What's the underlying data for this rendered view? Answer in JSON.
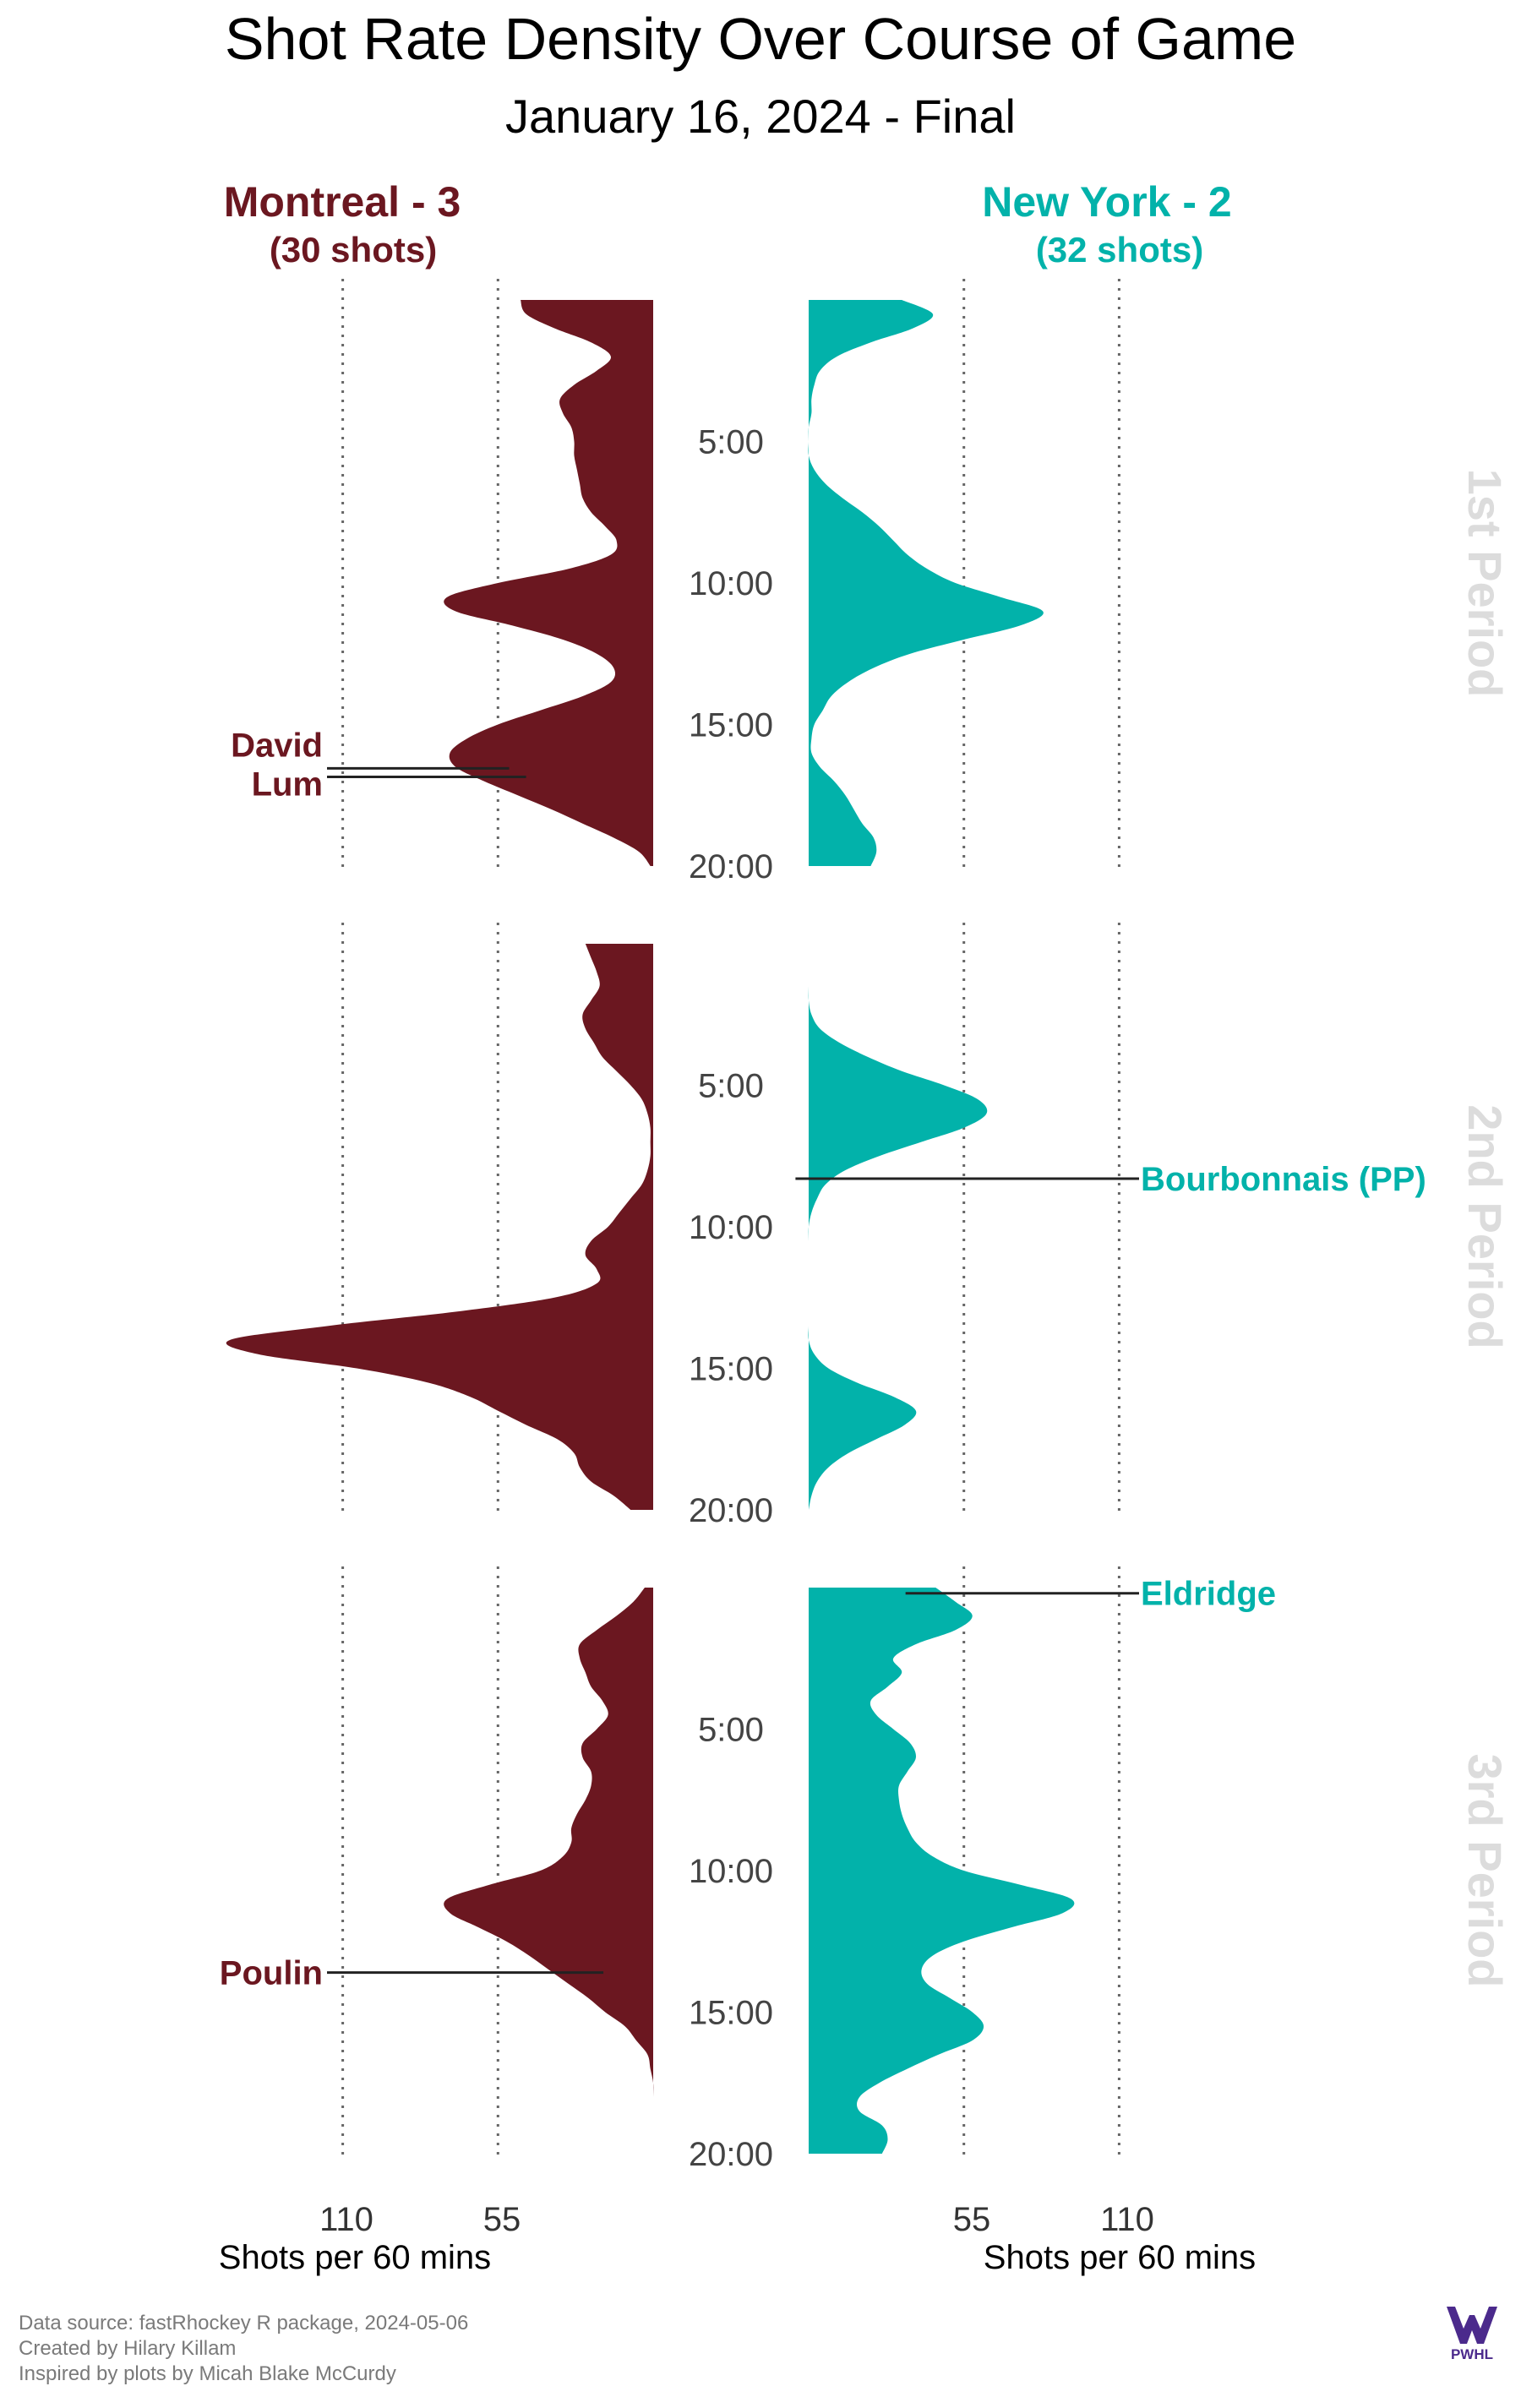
{
  "title": "Shot Rate Density Over Course of Game",
  "subtitle": "January 16, 2024 - Final",
  "teams": [
    {
      "name": "Montreal - 3",
      "shots_label": "(30 shots)",
      "color": "#6b1720"
    },
    {
      "name": "New York - 2",
      "shots_label": "(32 shots)",
      "color": "#02b2aa"
    }
  ],
  "periods": [
    "1st Period",
    "2nd Period",
    "3rd Period"
  ],
  "time_ticks": [
    "5:00",
    "10:00",
    "15:00",
    "20:00"
  ],
  "axis_title": "Shots per 60 mins",
  "footer": [
    "Data source: fastRhockey R package, 2024-05-06",
    "Created by Hilary Killam",
    "Inspired by plots by Micah Blake McCurdy"
  ],
  "logo_text": "PWHL",
  "colors": {
    "montreal": "#6b1720",
    "new_york": "#02b2aa",
    "period_label": "#dcdcdc",
    "text": "#000000",
    "footer": "#7a7a7a"
  },
  "chart_data": {
    "type": "area",
    "x_axis": "Shots per 60 mins",
    "x_ticks": [
      110,
      55
    ],
    "y_axis": "game time within period (minutes, 0-20)",
    "y_ticks": [
      "5:00",
      "10:00",
      "15:00",
      "20:00"
    ],
    "grid": "dotted vertical lines at 55 and 110",
    "series": [
      {
        "name": "Montreal - 3",
        "side": "left",
        "periods": [
          [
            [
              0,
              47
            ],
            [
              0.5,
              45
            ],
            [
              1,
              35
            ],
            [
              1.5,
              22
            ],
            [
              2,
              15
            ],
            [
              2.5,
              20
            ],
            [
              3,
              28
            ],
            [
              3.5,
              33
            ],
            [
              4,
              32
            ],
            [
              4.5,
              29
            ],
            [
              5,
              28
            ],
            [
              5.5,
              28
            ],
            [
              6,
              27
            ],
            [
              6.5,
              26
            ],
            [
              7,
              25
            ],
            [
              7.5,
              22
            ],
            [
              8,
              17
            ],
            [
              8.5,
              13
            ],
            [
              9,
              15
            ],
            [
              9.5,
              30
            ],
            [
              10,
              55
            ],
            [
              10.5,
              73
            ],
            [
              11,
              70
            ],
            [
              11.5,
              50
            ],
            [
              12,
              32
            ],
            [
              12.5,
              20
            ],
            [
              13,
              14
            ],
            [
              13.5,
              15
            ],
            [
              14,
              25
            ],
            [
              14.5,
              40
            ],
            [
              15,
              55
            ],
            [
              15.5,
              66
            ],
            [
              16,
              72
            ],
            [
              16.5,
              70
            ],
            [
              17,
              60
            ],
            [
              17.5,
              48
            ],
            [
              18,
              36
            ],
            [
              18.5,
              25
            ],
            [
              19,
              14
            ],
            [
              19.5,
              5
            ],
            [
              20,
              1
            ]
          ],
          [
            [
              0,
              24
            ],
            [
              0.5,
              22
            ],
            [
              1,
              20
            ],
            [
              1.5,
              19
            ],
            [
              2,
              22
            ],
            [
              2.5,
              25
            ],
            [
              3,
              24
            ],
            [
              3.5,
              21
            ],
            [
              4,
              18
            ],
            [
              4.5,
              13
            ],
            [
              5,
              8
            ],
            [
              5.5,
              4
            ],
            [
              6,
              2
            ],
            [
              6.5,
              1
            ],
            [
              7,
              1
            ],
            [
              7.5,
              1
            ],
            [
              8,
              2
            ],
            [
              8.5,
              4
            ],
            [
              9,
              8
            ],
            [
              9.5,
              12
            ],
            [
              10,
              16
            ],
            [
              10.5,
              22
            ],
            [
              11,
              24
            ],
            [
              11.5,
              20
            ],
            [
              12,
              20
            ],
            [
              12.5,
              35
            ],
            [
              13,
              70
            ],
            [
              13.5,
              115
            ],
            [
              14,
              150
            ],
            [
              14.5,
              140
            ],
            [
              15,
              105
            ],
            [
              15.5,
              80
            ],
            [
              16,
              65
            ],
            [
              16.5,
              55
            ],
            [
              17,
              45
            ],
            [
              17.5,
              34
            ],
            [
              18,
              28
            ],
            [
              18.5,
              26
            ],
            [
              19,
              22
            ],
            [
              19.5,
              14
            ],
            [
              20,
              8
            ]
          ],
          [
            [
              0,
              3
            ],
            [
              0.5,
              7
            ],
            [
              1,
              13
            ],
            [
              1.5,
              20
            ],
            [
              2,
              26
            ],
            [
              2.5,
              26
            ],
            [
              3,
              24
            ],
            [
              3.5,
              22
            ],
            [
              4,
              18
            ],
            [
              4.5,
              16
            ],
            [
              5,
              20
            ],
            [
              5.5,
              25
            ],
            [
              6,
              25
            ],
            [
              6.5,
              22
            ],
            [
              7,
              22
            ],
            [
              7.5,
              24
            ],
            [
              8,
              27
            ],
            [
              8.5,
              29
            ],
            [
              9,
              29
            ],
            [
              9.5,
              32
            ],
            [
              10,
              40
            ],
            [
              10.5,
              58
            ],
            [
              11,
              73
            ],
            [
              11.5,
              72
            ],
            [
              12,
              62
            ],
            [
              12.5,
              52
            ],
            [
              13,
              44
            ],
            [
              13.5,
              37
            ],
            [
              14,
              30
            ],
            [
              14.5,
              23
            ],
            [
              15,
              17
            ],
            [
              15.5,
              10
            ],
            [
              16,
              6
            ],
            [
              16.5,
              2
            ],
            [
              17,
              1
            ],
            [
              17.5,
              0
            ],
            [
              18,
              0
            ],
            [
              18.5,
              0
            ],
            [
              19,
              0
            ],
            [
              19.5,
              0
            ],
            [
              20,
              0
            ]
          ]
        ]
      },
      {
        "name": "New York - 2",
        "side": "right",
        "periods": [
          [
            [
              0,
              33
            ],
            [
              0.5,
              44
            ],
            [
              1,
              37
            ],
            [
              1.5,
              22
            ],
            [
              2,
              10
            ],
            [
              2.5,
              4
            ],
            [
              3,
              2
            ],
            [
              3.5,
              1
            ],
            [
              4,
              1
            ],
            [
              4.5,
              0
            ],
            [
              5,
              0
            ],
            [
              5.5,
              0
            ],
            [
              6,
              2
            ],
            [
              6.5,
              6
            ],
            [
              7,
              12
            ],
            [
              7.5,
              19
            ],
            [
              8,
              25
            ],
            [
              8.5,
              30
            ],
            [
              9,
              35
            ],
            [
              9.5,
              42
            ],
            [
              10,
              52
            ],
            [
              10.5,
              68
            ],
            [
              11,
              83
            ],
            [
              11.5,
              75
            ],
            [
              12,
              55
            ],
            [
              12.5,
              36
            ],
            [
              13,
              23
            ],
            [
              13.5,
              14
            ],
            [
              14,
              8
            ],
            [
              14.5,
              5
            ],
            [
              15,
              2
            ],
            [
              15.5,
              1
            ],
            [
              16,
              1
            ],
            [
              16.5,
              4
            ],
            [
              17,
              9
            ],
            [
              17.5,
              13
            ],
            [
              18,
              16
            ],
            [
              18.5,
              19
            ],
            [
              19,
              23
            ],
            [
              19.5,
              24
            ],
            [
              20,
              22
            ]
          ],
          [
            [
              0,
              0
            ],
            [
              0.5,
              0
            ],
            [
              1,
              0
            ],
            [
              1.5,
              0
            ],
            [
              2,
              0
            ],
            [
              2.5,
              1
            ],
            [
              3,
              4
            ],
            [
              3.5,
              11
            ],
            [
              4,
              21
            ],
            [
              4.5,
              33
            ],
            [
              5,
              48
            ],
            [
              5.5,
              60
            ],
            [
              6,
              63
            ],
            [
              6.5,
              55
            ],
            [
              7,
              40
            ],
            [
              7.5,
              25
            ],
            [
              8,
              13
            ],
            [
              8.5,
              6
            ],
            [
              9,
              3
            ],
            [
              9.5,
              1
            ],
            [
              10,
              0
            ],
            [
              10.5,
              0
            ],
            [
              11,
              0
            ],
            [
              11.5,
              0
            ],
            [
              12,
              0
            ],
            [
              12.5,
              0
            ],
            [
              13,
              0
            ],
            [
              13.5,
              0
            ],
            [
              14,
              0
            ],
            [
              14.5,
              2
            ],
            [
              15,
              7
            ],
            [
              15.5,
              17
            ],
            [
              16,
              30
            ],
            [
              16.5,
              38
            ],
            [
              17,
              34
            ],
            [
              17.5,
              24
            ],
            [
              18,
              14
            ],
            [
              18.5,
              7
            ],
            [
              19,
              3
            ],
            [
              19.5,
              1
            ],
            [
              20,
              0
            ]
          ],
          [
            [
              0,
              45
            ],
            [
              0.5,
              52
            ],
            [
              1,
              58
            ],
            [
              1.5,
              52
            ],
            [
              2,
              38
            ],
            [
              2.5,
              30
            ],
            [
              3,
              33
            ],
            [
              3.5,
              28
            ],
            [
              4,
              22
            ],
            [
              4.5,
              24
            ],
            [
              5,
              30
            ],
            [
              5.5,
              36
            ],
            [
              6,
              38
            ],
            [
              6.5,
              35
            ],
            [
              7,
              32
            ],
            [
              7.5,
              32
            ],
            [
              8,
              33
            ],
            [
              8.5,
              35
            ],
            [
              9,
              38
            ],
            [
              9.5,
              44
            ],
            [
              10,
              55
            ],
            [
              10.5,
              75
            ],
            [
              11,
              93
            ],
            [
              11.5,
              90
            ],
            [
              12,
              72
            ],
            [
              12.5,
              55
            ],
            [
              13,
              44
            ],
            [
              13.5,
              40
            ],
            [
              14,
              42
            ],
            [
              14.5,
              50
            ],
            [
              15,
              58
            ],
            [
              15.5,
              62
            ],
            [
              16,
              58
            ],
            [
              16.5,
              46
            ],
            [
              17,
              35
            ],
            [
              17.5,
              25
            ],
            [
              18,
              18
            ],
            [
              18.5,
              18
            ],
            [
              19,
              26
            ],
            [
              19.5,
              28
            ],
            [
              20,
              26
            ]
          ]
        ]
      }
    ],
    "goals": [
      {
        "team": "Montreal - 3",
        "period": 1,
        "minute": 16.55,
        "label": "David"
      },
      {
        "team": "Montreal - 3",
        "period": 1,
        "minute": 16.85,
        "label": "Lum"
      },
      {
        "team": "New York - 2",
        "period": 2,
        "minute": 8.3,
        "label": "Bourbonnais (PP)"
      },
      {
        "team": "New York - 2",
        "period": 3,
        "minute": 0.2,
        "label": "Eldridge"
      },
      {
        "team": "Montreal - 3",
        "period": 3,
        "minute": 13.6,
        "label": "Poulin"
      }
    ]
  }
}
